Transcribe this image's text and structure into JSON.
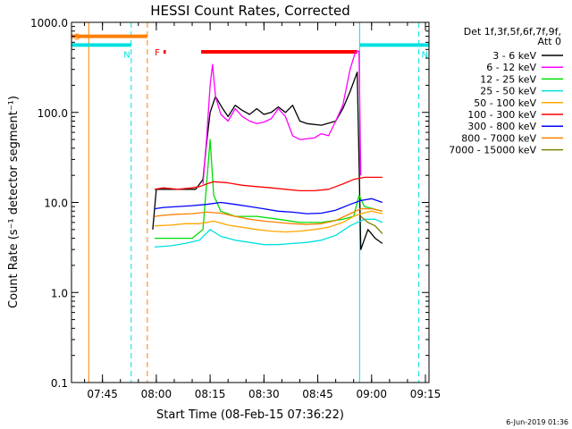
{
  "chart_data": {
    "type": "line",
    "title": "HESSI Count Rates, Corrected",
    "ylabel": "Count Rate (s⁻¹ detector segment⁻¹)",
    "xlabel": "Start Time (08-Feb-15 07:36:22)",
    "y_scale": "log",
    "ylim": [
      0.1,
      1000
    ],
    "xlim": [
      "07:36:22",
      "09:16:00"
    ],
    "y_ticks": [
      "0.1",
      "1.0",
      "10.0",
      "100.0",
      "1000.0"
    ],
    "x_ticks": [
      "07:45",
      "08:00",
      "08:15",
      "08:30",
      "08:45",
      "09:00",
      "09:15"
    ],
    "legend_header": [
      "Det 1f,3f,5f,6f,7f,9f,",
      "Att 0"
    ],
    "legend_placement": "right",
    "footer": "6-Jun-2019 01:36",
    "flags": [
      {
        "label": "S",
        "color": "#ff8000",
        "start": "07:36:22",
        "end": "07:57:30",
        "y": 700
      },
      {
        "label": "N",
        "color": "#00e0e0",
        "start": "07:36:22",
        "end": "07:53:00",
        "y": 560
      },
      {
        "label": "N",
        "color": "#00e0e0",
        "start": "08:56:40",
        "end": "09:16:00",
        "y": 560
      },
      {
        "label": "F",
        "color": "#ff0000",
        "start": "08:02:00",
        "end": "08:02:40",
        "y": 470
      },
      {
        "label": "",
        "color": "#ff0000",
        "start": "08:12:30",
        "end": "08:56:00",
        "y": 470
      }
    ],
    "vertical_lines": [
      {
        "time": "07:36:22",
        "color": "#00e0e0",
        "style": "solid"
      },
      {
        "time": "07:41:10",
        "color": "#ff8000",
        "style": "solid"
      },
      {
        "time": "07:53:00",
        "color": "#00e0e0",
        "style": "dashed"
      },
      {
        "time": "07:57:30",
        "color": "#ff8000",
        "style": "dashed"
      },
      {
        "time": "08:56:40",
        "color": "#00e0e0",
        "style": "solid"
      },
      {
        "time": "09:13:10",
        "color": "#00e0e0",
        "style": "dashed"
      }
    ],
    "series": [
      {
        "name": "3 - 6 keV",
        "color": "#000000",
        "points": [
          [
            "07:59:00",
            5
          ],
          [
            "08:00:00",
            14
          ],
          [
            "08:04:00",
            14
          ],
          [
            "08:08:00",
            14
          ],
          [
            "08:11:00",
            14
          ],
          [
            "08:13:00",
            18
          ],
          [
            "08:14:00",
            45
          ],
          [
            "08:15:00",
            100
          ],
          [
            "08:16:30",
            150
          ],
          [
            "08:18:30",
            110
          ],
          [
            "08:20:00",
            90
          ],
          [
            "08:22:00",
            120
          ],
          [
            "08:24:00",
            105
          ],
          [
            "08:26:00",
            95
          ],
          [
            "08:28:00",
            110
          ],
          [
            "08:30:00",
            95
          ],
          [
            "08:32:00",
            100
          ],
          [
            "08:34:00",
            115
          ],
          [
            "08:36:00",
            100
          ],
          [
            "08:38:00",
            120
          ],
          [
            "08:40:00",
            80
          ],
          [
            "08:42:00",
            75
          ],
          [
            "08:46:00",
            72
          ],
          [
            "08:50:00",
            80
          ],
          [
            "08:52:00",
            110
          ],
          [
            "08:54:00",
            170
          ],
          [
            "08:56:00",
            280
          ],
          [
            "08:57:00",
            3
          ],
          [
            "08:59:00",
            5
          ],
          [
            "09:01:00",
            4
          ],
          [
            "09:03:00",
            3.5
          ]
        ]
      },
      {
        "name": "6 - 12 keV",
        "color": "#ff00ff",
        "points": [
          [
            "08:13:00",
            16
          ],
          [
            "08:14:00",
            50
          ],
          [
            "08:15:00",
            200
          ],
          [
            "08:15:40",
            340
          ],
          [
            "08:16:30",
            150
          ],
          [
            "08:18:00",
            95
          ],
          [
            "08:20:00",
            80
          ],
          [
            "08:22:00",
            110
          ],
          [
            "08:24:00",
            90
          ],
          [
            "08:26:00",
            80
          ],
          [
            "08:28:00",
            75
          ],
          [
            "08:30:00",
            78
          ],
          [
            "08:32:00",
            85
          ],
          [
            "08:34:00",
            110
          ],
          [
            "08:36:00",
            90
          ],
          [
            "08:38:00",
            55
          ],
          [
            "08:40:00",
            50
          ],
          [
            "08:44:00",
            52
          ],
          [
            "08:46:00",
            58
          ],
          [
            "08:48:00",
            55
          ],
          [
            "08:50:00",
            80
          ],
          [
            "08:52:00",
            120
          ],
          [
            "08:54:00",
            300
          ],
          [
            "08:55:30",
            470
          ],
          [
            "08:56:30",
            480
          ],
          [
            "08:57:00",
            20
          ]
        ]
      },
      {
        "name": "12 - 25 keV",
        "color": "#00dd00",
        "points": [
          [
            "07:59:30",
            4
          ],
          [
            "08:04:00",
            4
          ],
          [
            "08:10:00",
            4
          ],
          [
            "08:13:00",
            5
          ],
          [
            "08:15:00",
            50
          ],
          [
            "08:16:00",
            12
          ],
          [
            "08:18:00",
            8
          ],
          [
            "08:22:00",
            7
          ],
          [
            "08:28:00",
            7
          ],
          [
            "08:34:00",
            6.5
          ],
          [
            "08:40:00",
            6
          ],
          [
            "08:46:00",
            6
          ],
          [
            "08:52:00",
            6.5
          ],
          [
            "08:55:00",
            7
          ],
          [
            "08:56:30",
            12
          ],
          [
            "08:58:00",
            9
          ],
          [
            "09:03:00",
            8
          ]
        ]
      },
      {
        "name": "25 - 50 keV",
        "color": "#00e0e0",
        "points": [
          [
            "07:59:30",
            3.2
          ],
          [
            "08:04:00",
            3.3
          ],
          [
            "08:08:00",
            3.5
          ],
          [
            "08:12:00",
            3.8
          ],
          [
            "08:15:00",
            5
          ],
          [
            "08:18:00",
            4.2
          ],
          [
            "08:22:00",
            3.8
          ],
          [
            "08:26:00",
            3.6
          ],
          [
            "08:30:00",
            3.4
          ],
          [
            "08:34:00",
            3.4
          ],
          [
            "08:38:00",
            3.5
          ],
          [
            "08:42:00",
            3.6
          ],
          [
            "08:46:00",
            3.8
          ],
          [
            "08:50:00",
            4.3
          ],
          [
            "08:54:00",
            5.5
          ],
          [
            "08:56:00",
            6
          ],
          [
            "08:58:00",
            6.5
          ],
          [
            "09:01:00",
            6.5
          ],
          [
            "09:03:00",
            6
          ]
        ]
      },
      {
        "name": "50 - 100 keV",
        "color": "#ffa500",
        "points": [
          [
            "07:59:30",
            5.5
          ],
          [
            "08:04:00",
            5.6
          ],
          [
            "08:08:00",
            5.8
          ],
          [
            "08:12:00",
            5.8
          ],
          [
            "08:16:00",
            6.2
          ],
          [
            "08:20:00",
            5.6
          ],
          [
            "08:24:00",
            5.3
          ],
          [
            "08:28:00",
            5
          ],
          [
            "08:32:00",
            4.8
          ],
          [
            "08:36:00",
            4.7
          ],
          [
            "08:40:00",
            4.8
          ],
          [
            "08:44:00",
            5
          ],
          [
            "08:48:00",
            5.3
          ],
          [
            "08:52:00",
            6
          ],
          [
            "08:55:00",
            7
          ],
          [
            "08:57:00",
            7.5
          ],
          [
            "09:00:00",
            8
          ],
          [
            "09:03:00",
            7.5
          ]
        ]
      },
      {
        "name": "100 - 300 keV",
        "color": "#ff0000",
        "points": [
          [
            "07:59:30",
            14
          ],
          [
            "08:02:00",
            14.5
          ],
          [
            "08:06:00",
            14
          ],
          [
            "08:10:00",
            14.5
          ],
          [
            "08:12:00",
            15
          ],
          [
            "08:14:00",
            16
          ],
          [
            "08:16:00",
            17
          ],
          [
            "08:20:00",
            16.5
          ],
          [
            "08:24:00",
            15.5
          ],
          [
            "08:28:00",
            15
          ],
          [
            "08:32:00",
            14.5
          ],
          [
            "08:36:00",
            14
          ],
          [
            "08:40:00",
            13.5
          ],
          [
            "08:44:00",
            13.5
          ],
          [
            "08:48:00",
            14
          ],
          [
            "08:52:00",
            16
          ],
          [
            "08:55:00",
            18
          ],
          [
            "08:58:00",
            19
          ],
          [
            "09:01:00",
            19
          ],
          [
            "09:03:00",
            19
          ]
        ]
      },
      {
        "name": "300 - 800 keV",
        "color": "#0000ff",
        "points": [
          [
            "07:59:30",
            8.5
          ],
          [
            "08:02:00",
            8.8
          ],
          [
            "08:06:00",
            9
          ],
          [
            "08:10:00",
            9.2
          ],
          [
            "08:14:00",
            9.5
          ],
          [
            "08:18:00",
            10
          ],
          [
            "08:22:00",
            9.5
          ],
          [
            "08:26:00",
            9
          ],
          [
            "08:30:00",
            8.5
          ],
          [
            "08:34:00",
            8
          ],
          [
            "08:38:00",
            7.8
          ],
          [
            "08:42:00",
            7.5
          ],
          [
            "08:46:00",
            7.6
          ],
          [
            "08:50:00",
            8.2
          ],
          [
            "08:54:00",
            9.5
          ],
          [
            "08:57:00",
            10.5
          ],
          [
            "09:00:00",
            11
          ],
          [
            "09:03:00",
            10
          ]
        ]
      },
      {
        "name": "800 - 7000 keV",
        "color": "#ff8000",
        "points": [
          [
            "07:59:30",
            7
          ],
          [
            "08:02:00",
            7.2
          ],
          [
            "08:06:00",
            7.4
          ],
          [
            "08:10:00",
            7.5
          ],
          [
            "08:14:00",
            7.8
          ],
          [
            "08:18:00",
            7.6
          ],
          [
            "08:22:00",
            7
          ],
          [
            "08:26:00",
            6.5
          ],
          [
            "08:30:00",
            6.2
          ],
          [
            "08:34:00",
            6
          ],
          [
            "08:38:00",
            5.8
          ],
          [
            "08:42:00",
            5.7
          ],
          [
            "08:46:00",
            5.8
          ],
          [
            "08:50:00",
            6.3
          ],
          [
            "08:54:00",
            7.5
          ],
          [
            "08:57:00",
            8.5
          ],
          [
            "09:00:00",
            8.5
          ],
          [
            "09:03:00",
            8
          ]
        ]
      },
      {
        "name": "7000 - 15000 keV",
        "color": "#808000",
        "points": [
          [
            "08:57:00",
            7
          ],
          [
            "08:59:00",
            6
          ],
          [
            "09:01:00",
            5.5
          ],
          [
            "09:03:00",
            4.5
          ]
        ]
      }
    ]
  }
}
